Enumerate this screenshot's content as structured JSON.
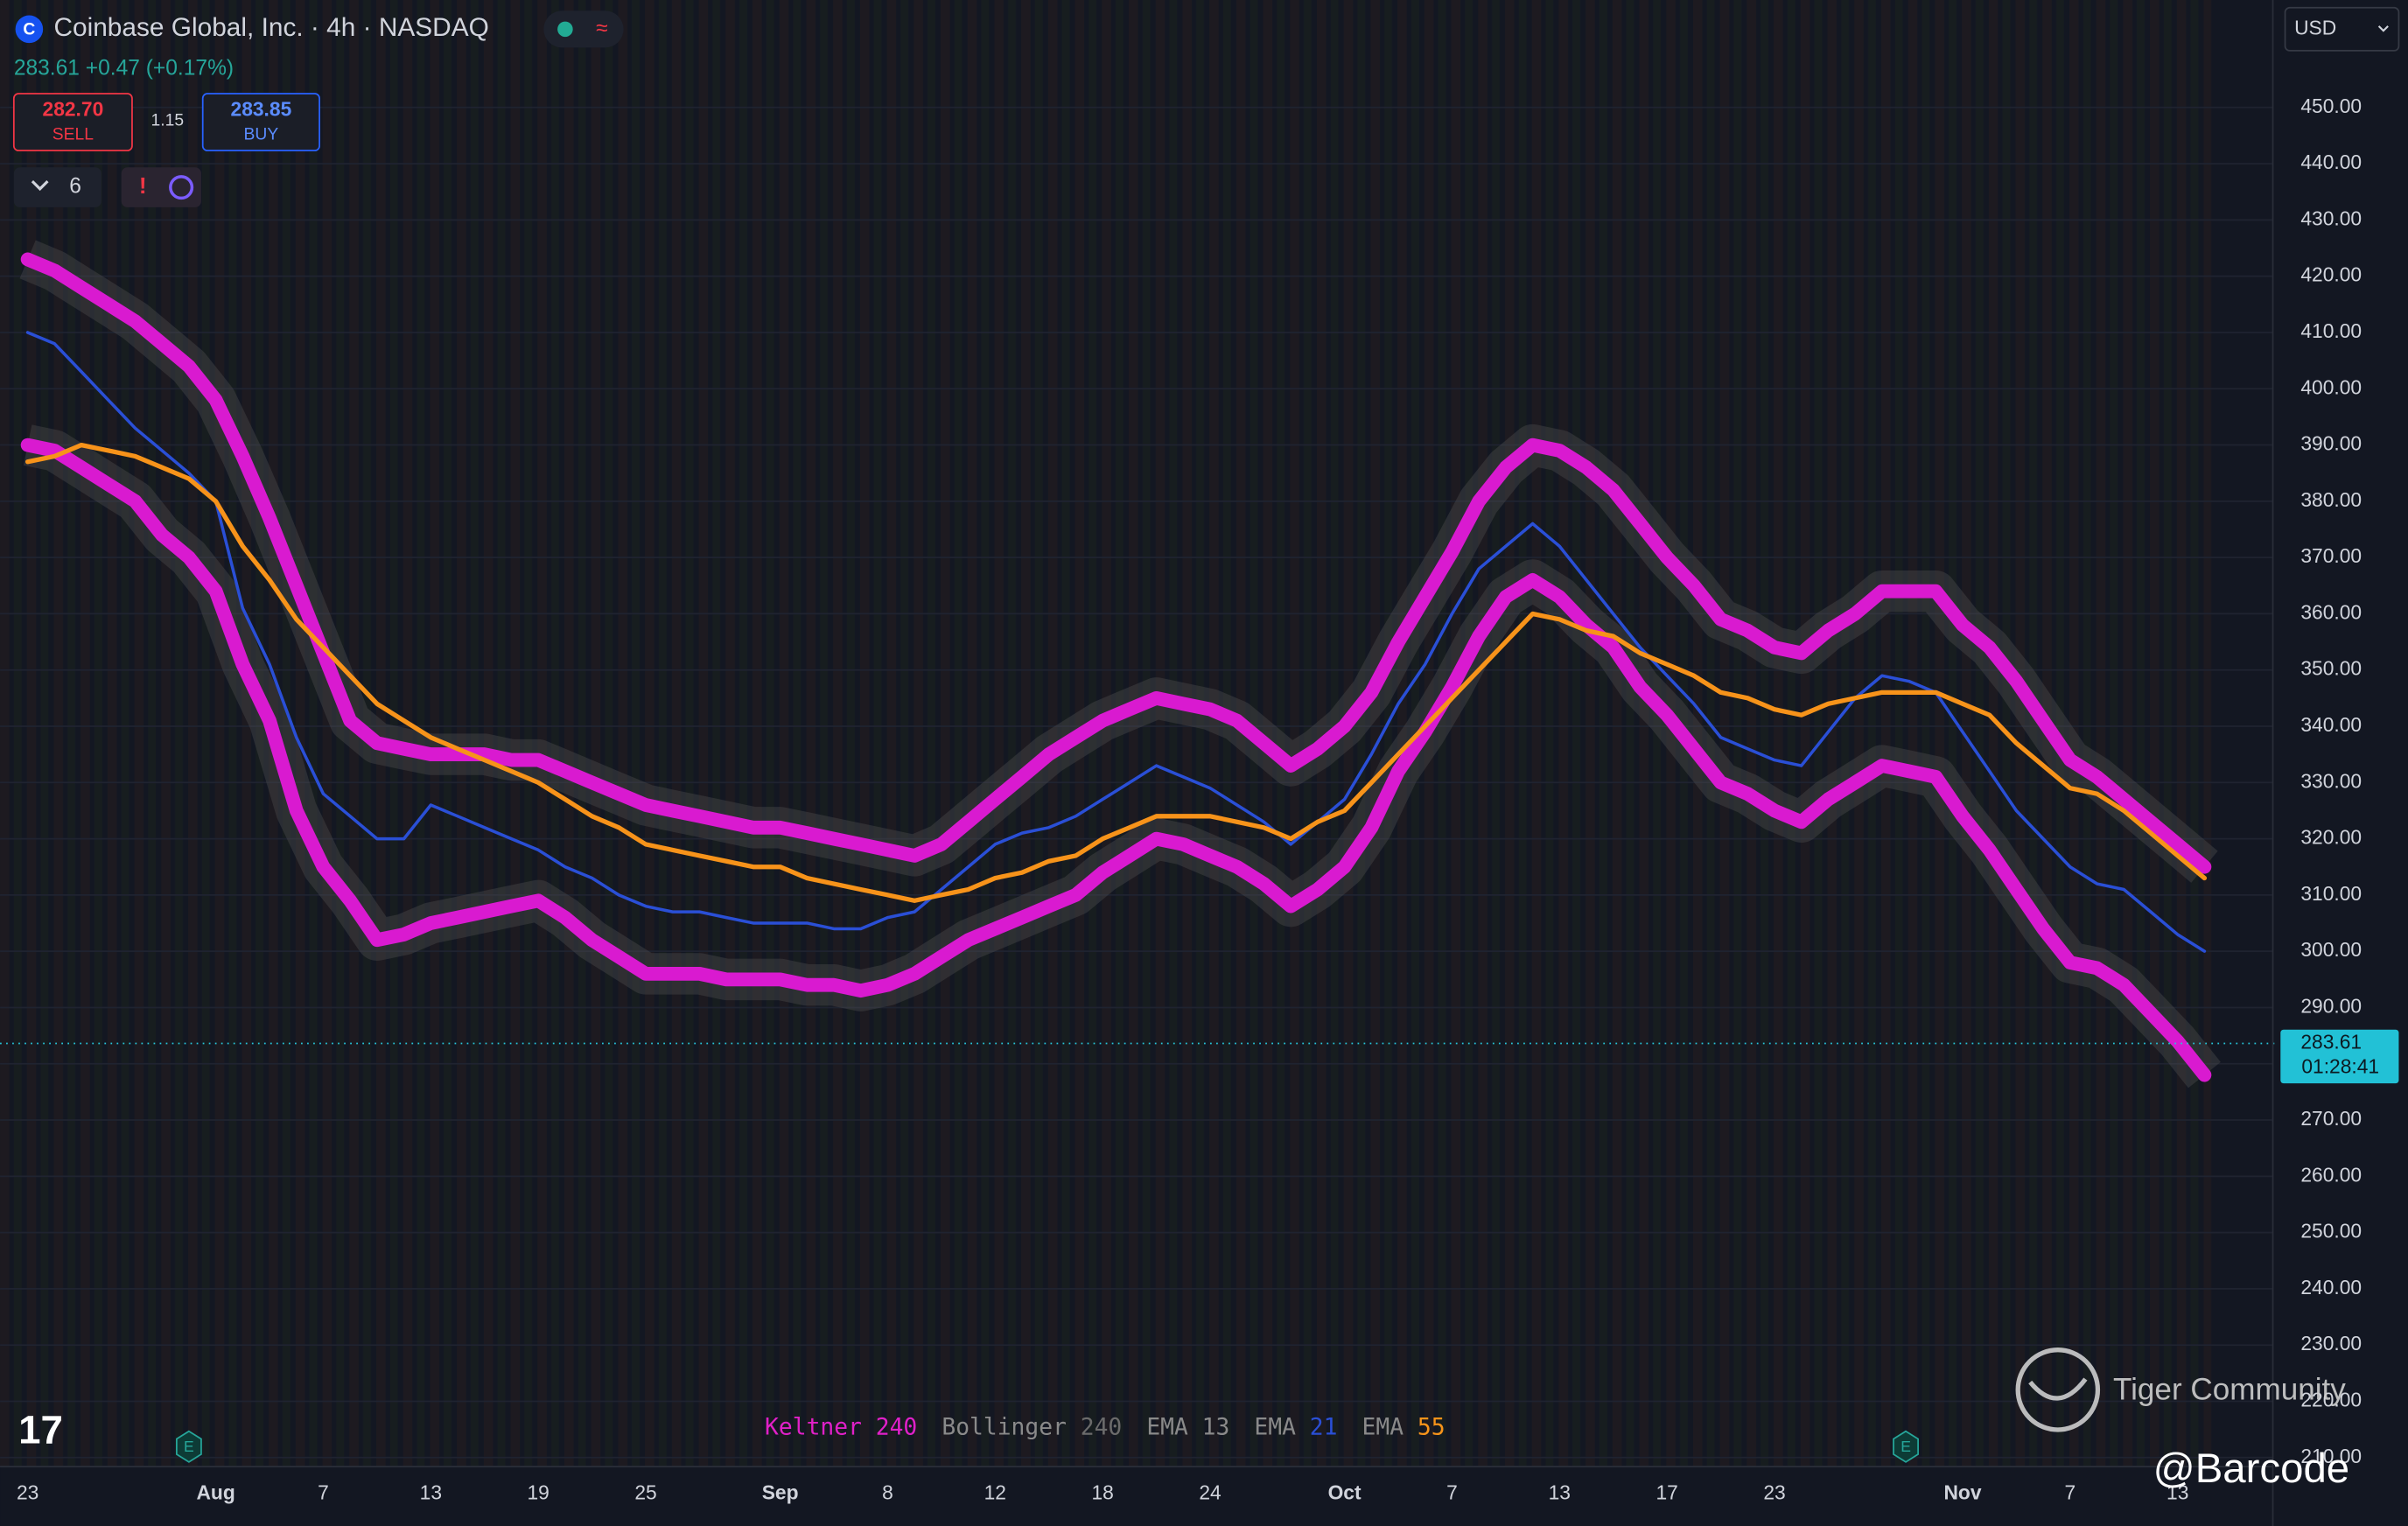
{
  "header": {
    "title": "Coinbase Global, Inc. · 4h · NASDAQ",
    "quote": "283.61 +0.47 (+0.17%)",
    "sell_price": "282.70",
    "sell_label": "SELL",
    "spread": "1.15",
    "buy_price": "283.85",
    "buy_label": "BUY",
    "indicators_count": "6",
    "currency": "USD"
  },
  "watermark": {
    "brand": "Tiger Community",
    "user": "@Barcode"
  },
  "chart_data": {
    "type": "line",
    "categories": [
      "23",
      null,
      null,
      null,
      null,
      null,
      null,
      "Aug",
      null,
      null,
      null,
      "7",
      null,
      null,
      null,
      "13",
      null,
      null,
      null,
      "19",
      null,
      null,
      null,
      "25",
      null,
      null,
      null,
      null,
      "Sep",
      null,
      null,
      null,
      "8",
      null,
      null,
      null,
      "12",
      null,
      null,
      null,
      "18",
      null,
      null,
      null,
      "24",
      null,
      null,
      null,
      null,
      "Oct",
      null,
      null,
      null,
      "7",
      null,
      null,
      null,
      "13",
      null,
      null,
      null,
      "17",
      null,
      null,
      null,
      "23",
      null,
      null,
      null,
      null,
      null,
      null,
      "Nov",
      null,
      null,
      null,
      "7",
      null,
      null,
      null,
      "13",
      null
    ],
    "series": [
      {
        "color": "#d91ad0",
        "width": 9,
        "values": [
          423,
          421,
          418,
          415,
          412,
          408,
          404,
          398,
          388,
          377,
          365,
          353,
          341,
          337,
          336,
          335,
          335,
          335,
          334,
          334,
          332,
          330,
          328,
          326,
          325,
          324,
          323,
          322,
          322,
          321,
          320,
          319,
          318,
          317,
          319,
          323,
          327,
          331,
          335,
          338,
          341,
          343,
          345,
          344,
          343,
          341,
          337,
          333,
          336,
          340,
          346,
          355,
          363,
          371,
          380,
          386,
          390,
          389,
          386,
          382,
          376,
          370,
          365,
          359,
          357,
          354,
          353,
          357,
          360,
          364,
          364,
          364,
          358,
          354,
          348,
          341,
          334,
          331,
          327,
          323,
          319,
          315
        ]
      },
      {
        "color": "#d91ad0",
        "width": 9,
        "values": [
          390,
          389,
          386,
          383,
          380,
          374,
          370,
          364,
          351,
          341,
          325,
          315,
          309,
          302,
          303,
          305,
          306,
          307,
          308,
          309,
          306,
          302,
          299,
          296,
          296,
          296,
          295,
          295,
          295,
          294,
          294,
          293,
          294,
          296,
          299,
          302,
          304,
          306,
          308,
          310,
          314,
          317,
          320,
          319,
          317,
          315,
          312,
          308,
          311,
          315,
          322,
          332,
          339,
          347,
          356,
          363,
          366,
          363,
          358,
          354,
          347,
          342,
          336,
          330,
          328,
          325,
          323,
          327,
          330,
          333,
          332,
          331,
          324,
          318,
          311,
          304,
          298,
          297,
          294,
          289,
          284,
          278
        ]
      },
      {
        "color": "#2a4fd6",
        "width": 2,
        "values": [
          410,
          408,
          403,
          398,
          393,
          389,
          385,
          380,
          361,
          351,
          338,
          328,
          324,
          320,
          320,
          326,
          324,
          322,
          320,
          318,
          315,
          313,
          310,
          308,
          307,
          307,
          306,
          305,
          305,
          305,
          304,
          304,
          306,
          307,
          311,
          315,
          319,
          321,
          322,
          324,
          327,
          330,
          333,
          331,
          329,
          326,
          323,
          319,
          323,
          327,
          335,
          344,
          351,
          360,
          368,
          372,
          376,
          372,
          366,
          360,
          354,
          349,
          344,
          338,
          336,
          334,
          333,
          339,
          345,
          349,
          348,
          346,
          339,
          332,
          325,
          320,
          315,
          312,
          311,
          307,
          303,
          300
        ]
      },
      {
        "color": "#f7931a",
        "width": 3,
        "values": [
          387,
          388,
          390,
          389,
          388,
          386,
          384,
          380,
          372,
          366,
          359,
          354,
          349,
          344,
          341,
          338,
          336,
          334,
          332,
          330,
          327,
          324,
          322,
          319,
          318,
          317,
          316,
          315,
          315,
          313,
          312,
          311,
          310,
          309,
          310,
          311,
          313,
          314,
          316,
          317,
          320,
          322,
          324,
          324,
          324,
          323,
          322,
          320,
          323,
          325,
          330,
          335,
          340,
          345,
          350,
          355,
          360,
          359,
          357,
          356,
          353,
          351,
          349,
          346,
          345,
          343,
          342,
          344,
          345,
          346,
          346,
          346,
          344,
          342,
          337,
          333,
          329,
          328,
          325,
          321,
          317,
          313
        ]
      }
    ],
    "legend": [
      {
        "name": "Keltner",
        "param": "240",
        "color": "#e020c8"
      },
      {
        "name": "Bollinger",
        "param": "240",
        "color": "#6b6b6b"
      },
      {
        "name": "EMA",
        "param": "13",
        "color": "#8a8a8a"
      },
      {
        "name": "EMA",
        "param": "21",
        "color": "#2a4fd6"
      },
      {
        "name": "EMA",
        "param": "55",
        "color": "#f7931a"
      }
    ],
    "ylim": [
      208.4,
      469.1
    ],
    "yticks": [
      {
        "value": 210,
        "label": "210.00"
      },
      {
        "value": 220,
        "label": "220.00"
      },
      {
        "value": 230,
        "label": "230.00"
      },
      {
        "value": 240,
        "label": "240.00"
      },
      {
        "value": 250,
        "label": "250.00"
      },
      {
        "value": 260,
        "label": "260.00"
      },
      {
        "value": 270,
        "label": "270.00"
      },
      {
        "value": 280,
        "label": "280.00"
      },
      {
        "value": 290,
        "label": "290.00"
      },
      {
        "value": 300,
        "label": "300.00"
      },
      {
        "value": 310,
        "label": "310.00"
      },
      {
        "value": 320,
        "label": "320.00"
      },
      {
        "value": 330,
        "label": "330.00"
      },
      {
        "value": 340,
        "label": "340.00"
      },
      {
        "value": 350,
        "label": "350.00"
      },
      {
        "value": 360,
        "label": "360.00"
      },
      {
        "value": 370,
        "label": "370.00"
      },
      {
        "value": 380,
        "label": "380.00"
      },
      {
        "value": 390,
        "label": "390.00"
      },
      {
        "value": 400,
        "label": "400.00"
      },
      {
        "value": 410,
        "label": "410.00"
      },
      {
        "value": 420,
        "label": "420.00"
      },
      {
        "value": 430,
        "label": "430.00"
      },
      {
        "value": 440,
        "label": "440.00"
      },
      {
        "value": 450,
        "label": "450.00"
      }
    ],
    "grid": true,
    "last_price": 283.61,
    "countdown": "01:28:41"
  }
}
